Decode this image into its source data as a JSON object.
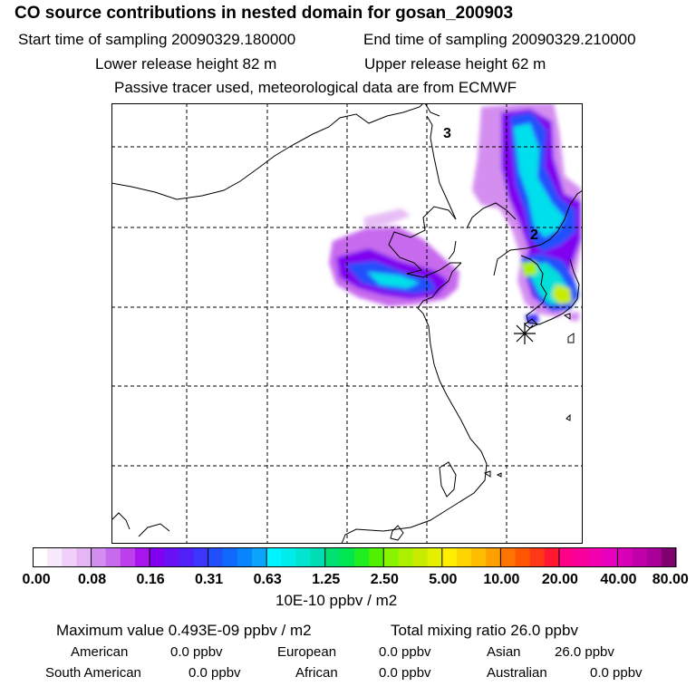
{
  "header": {
    "title": "CO  source contributions in nested domain for gosan_200903",
    "start": "Start time of sampling 20090329.180000",
    "end": "End time of sampling 20090329.210000",
    "lower": "Lower release height   82 m",
    "upper": "Upper release height   62 m",
    "tracer": "Passive tracer used, meteorological data are from ECMWF"
  },
  "map": {
    "labels": [
      "3",
      "2"
    ],
    "receptor_marker": "asterisk"
  },
  "colorbar": {
    "ticks": [
      "0.00",
      "0.08",
      "0.16",
      "0.31",
      "0.63",
      "1.25",
      "2.50",
      "5.00",
      "10.00",
      "20.00",
      "40.00",
      "80.00"
    ],
    "unit": "10E-10 ppbv / m2",
    "colors": [
      "#ffffff",
      "#f8e8fc",
      "#f0d0f8",
      "#e6b6f4",
      "#d48ef0",
      "#c86aee",
      "#bb40ec",
      "#a814ec",
      "#8000f0",
      "#6a10f4",
      "#5020f8",
      "#3c36fc",
      "#2050fc",
      "#1068fc",
      "#0884fc",
      "#0aa4fc",
      "#00f4ff",
      "#00ecec",
      "#00e4d0",
      "#00dcb4",
      "#00e070",
      "#00e650",
      "#20ee20",
      "#50f000",
      "#88f400",
      "#aaf000",
      "#c8ec00",
      "#e4f000",
      "#ffee00",
      "#ffd400",
      "#ffbc00",
      "#ffa000",
      "#ff7400",
      "#ff5600",
      "#ff3818",
      "#ff1830",
      "#ff0088",
      "#f8009c",
      "#f000b0",
      "#e800c0",
      "#d800b8",
      "#c000a8",
      "#a80098",
      "#800070"
    ]
  },
  "footer": {
    "max_value": "Maximum value  0.493E-09 ppbv / m2",
    "total": "Total mixing ratio       26.0 ppbv",
    "rows": [
      [
        [
          "American",
          "0.0 ppbv"
        ],
        [
          "European",
          "0.0 ppbv"
        ],
        [
          "Asian",
          "26.0 ppbv"
        ]
      ],
      [
        [
          "South American",
          "0.0 ppbv"
        ],
        [
          "African",
          "0.0 ppbv"
        ],
        [
          "Australian",
          "0.0 ppbv"
        ]
      ]
    ]
  }
}
